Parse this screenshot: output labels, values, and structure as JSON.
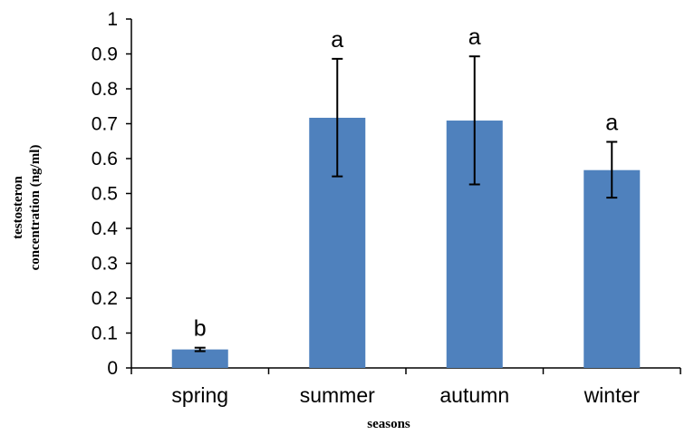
{
  "chart_data": {
    "type": "bar",
    "categories": [
      "spring",
      "summer",
      "autumn",
      "winter"
    ],
    "values": [
      0.053,
      0.717,
      0.709,
      0.567
    ],
    "error_low": [
      0.048,
      0.549,
      0.526,
      0.488
    ],
    "error_high": [
      0.058,
      0.886,
      0.893,
      0.648
    ],
    "significance_labels": [
      "b",
      "a",
      "a",
      "a"
    ],
    "xlabel": "seasons",
    "ylabel_lines": [
      "testosteron",
      "concentration (ng/ml)"
    ],
    "ylim": [
      0,
      1
    ],
    "yticks": [
      0,
      0.1,
      0.2,
      0.3,
      0.4,
      0.5,
      0.6,
      0.7,
      0.8,
      0.9,
      1
    ],
    "ytick_labels": [
      "0",
      "0.1",
      "0.2",
      "0.3",
      "0.4",
      "0.5",
      "0.6",
      "0.7",
      "0.8",
      "0.9",
      "1"
    ],
    "grid": false,
    "bar_color": "#4f81bd"
  }
}
